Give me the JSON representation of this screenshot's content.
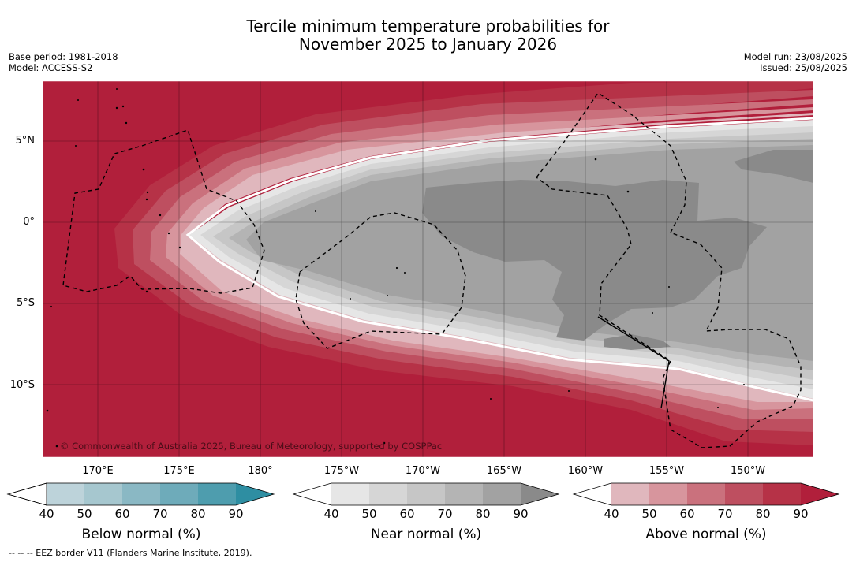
{
  "header": {
    "title_line1": "Tercile minimum temperature probabilities for",
    "title_line2": "November 2025 to January 2026",
    "base_period": "Base period: 1981-2018",
    "model": "Model: ACCESS-S2",
    "model_run": "Model run: 23/08/2025",
    "issued": "Issued: 25/08/2025"
  },
  "map": {
    "copyright": "© Commonwealth of Australia 2025, Bureau of Meteorology, supported by COSPPac",
    "lat_labels": [
      "5°N",
      "0°",
      "5°S",
      "10°S"
    ],
    "lon_labels": [
      "170°E",
      "175°E",
      "180°",
      "175°W",
      "170°W",
      "165°W",
      "160°W",
      "155°W",
      "150°W"
    ],
    "colors": {
      "above_dark": "#b11f3b",
      "near_dark": "#8a8a8a",
      "ocean_land_line": "#000000"
    }
  },
  "legends": [
    {
      "title": "Below normal (%)",
      "ticks": [
        "40",
        "50",
        "60",
        "70",
        "80",
        "90"
      ],
      "colors": [
        "#bdd3da",
        "#a6c7cf",
        "#8ab8c4",
        "#6eabba",
        "#4e9dae",
        "#2e8ea2"
      ]
    },
    {
      "title": "Near normal (%)",
      "ticks": [
        "40",
        "50",
        "60",
        "70",
        "80",
        "90"
      ],
      "colors": [
        "#e6e6e6",
        "#d6d6d6",
        "#c6c6c6",
        "#b4b4b4",
        "#a2a2a2",
        "#8a8a8a"
      ]
    },
    {
      "title": "Above normal (%)",
      "ticks": [
        "40",
        "50",
        "60",
        "70",
        "80",
        "90"
      ],
      "colors": [
        "#e0b7bd",
        "#d7959d",
        "#ca717d",
        "#be4f60",
        "#b63247",
        "#b11f3b"
      ]
    }
  ],
  "footnote": "--  --  -- EEZ border V11 (Flanders Marine Institute, 2019)."
}
